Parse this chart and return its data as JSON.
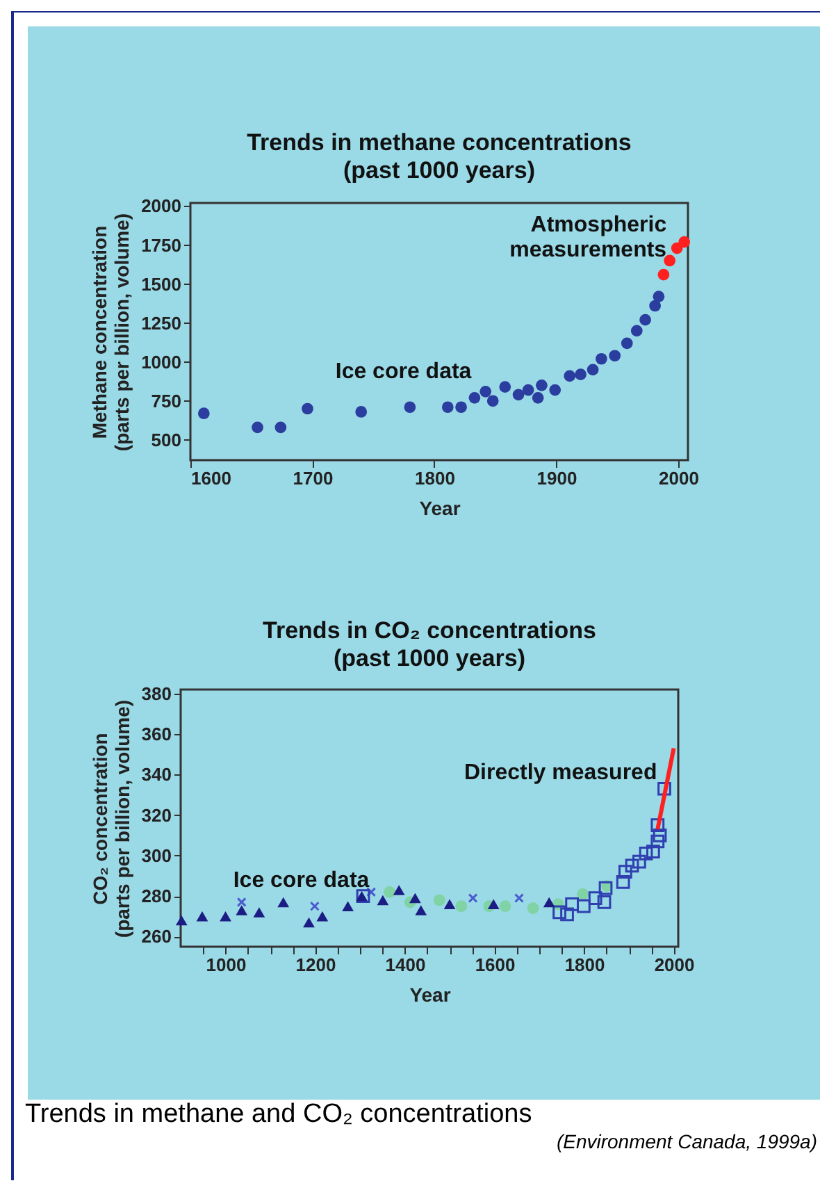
{
  "chart_data": [
    {
      "type": "scatter",
      "title": "Trends in methane concentrations",
      "subtitle": "(past 1000 years)",
      "xlabel": "Year",
      "ylabel": "Methane concentration\n(parts per billion, volume)",
      "xlim": [
        1600,
        2008
      ],
      "xticks": [
        1600,
        1700,
        1800,
        1900,
        2000
      ],
      "ylim": [
        370,
        2020
      ],
      "yticks": [
        500,
        750,
        1000,
        1250,
        1500,
        1750,
        2000
      ],
      "grid": false,
      "marker": "circle",
      "series": [
        {
          "color": "#2b3d9f",
          "x": [
            1611,
            1655,
            1674,
            1696,
            1740,
            1780,
            1811,
            1822,
            1833,
            1842,
            1848,
            1858,
            1869,
            1877,
            1885,
            1888,
            1899,
            1911,
            1920,
            1930,
            1937,
            1948,
            1958,
            1966,
            1973,
            1981,
            1984
          ],
          "values": [
            670,
            580,
            580,
            700,
            680,
            710,
            710,
            710,
            770,
            810,
            750,
            840,
            790,
            820,
            770,
            850,
            820,
            910,
            920,
            950,
            1020,
            1040,
            1120,
            1200,
            1270,
            1360,
            1420
          ]
        },
        {
          "color": "#ff2020",
          "x": [
            1988,
            1993,
            1999,
            2005
          ],
          "values": [
            1560,
            1650,
            1730,
            1770
          ]
        }
      ],
      "annotations": [
        {
          "text": "Ice core data",
          "x": 1835,
          "y": 800
        },
        {
          "text": "Atmospheric\nmeasurements",
          "x": 1995,
          "y": 1740
        }
      ]
    },
    {
      "type": "scatter",
      "title": "Trends in CO₂ concentrations",
      "subtitle": "(past 1000 years)",
      "xlabel": "Year",
      "ylabel": "CO₂ concentration\n(parts per billion, volume)",
      "xlim": [
        900,
        2010
      ],
      "xticks": [
        {
          "value": 950,
          "label": null
        },
        1000,
        {
          "value": 1050,
          "label": null
        },
        {
          "value": 1100,
          "label": null
        },
        {
          "value": 1150,
          "label": null
        },
        1200,
        {
          "value": 1250,
          "label": null
        },
        {
          "value": 1300,
          "label": null
        },
        {
          "value": 1350,
          "label": null
        },
        1400,
        {
          "value": 1450,
          "label": null
        },
        {
          "value": 1500,
          "label": null
        },
        {
          "value": 1550,
          "label": null
        },
        1600,
        {
          "value": 1650,
          "label": null
        },
        {
          "value": 1700,
          "label": null
        },
        {
          "value": 1750,
          "label": null
        },
        1800,
        {
          "value": 1850,
          "label": null
        },
        {
          "value": 1900,
          "label": null
        },
        {
          "value": 1950,
          "label": null
        },
        2000
      ],
      "ylim": [
        255,
        382
      ],
      "yticks": [
        260,
        280,
        300,
        320,
        340,
        360,
        380
      ],
      "grid": false,
      "series": [
        {
          "marker": "triangle",
          "color": "#1c1c85",
          "x": [
            902,
            948,
            1000,
            1036,
            1075,
            1129,
            1186,
            1216,
            1273,
            1304,
            1351,
            1387,
            1423,
            1436,
            1500,
            1598,
            1722
          ],
          "values": [
            268,
            270,
            270,
            273,
            272,
            277,
            267,
            270,
            275,
            280,
            278,
            283,
            279,
            273,
            276,
            276,
            277
          ]
        },
        {
          "marker": "cross",
          "color": "#4a5ad0",
          "x": [
            1036,
            1199,
            1325,
            1552,
            1655
          ],
          "values": [
            277,
            275,
            282,
            279,
            279
          ]
        },
        {
          "marker": "circle",
          "color": "#7fd3a4",
          "x": [
            1366,
            1412,
            1477,
            1526,
            1588,
            1624,
            1686,
            1742,
            1797,
            1851
          ],
          "values": [
            282,
            277,
            278,
            275,
            275,
            275,
            274,
            276,
            281,
            285
          ]
        },
        {
          "marker": "square",
          "color": "#2f3fb0",
          "x": [
            1307,
            1745,
            1762,
            1773,
            1799,
            1825,
            1845,
            1848,
            1887,
            1892,
            1907,
            1923,
            1938,
            1954,
            1964,
            1969,
            1964,
            1979
          ],
          "values": [
            280,
            272,
            271,
            276,
            275,
            279,
            277,
            284,
            287,
            292,
            295,
            297,
            301,
            302,
            307,
            310,
            315,
            333
          ]
        },
        {
          "type": "line",
          "color": "#ff2020",
          "x": [
            1964,
            2000
          ],
          "values": [
            313,
            353
          ]
        }
      ],
      "annotations": [
        {
          "text": "Ice core data",
          "x": 1200,
          "y": 277
        },
        {
          "text": "Directly measured",
          "x": 1975,
          "y": 330
        },
        "Trends in methane and CO₂ concentrations",
        "(Environment Canada, 1999a)"
      ]
    }
  ]
}
